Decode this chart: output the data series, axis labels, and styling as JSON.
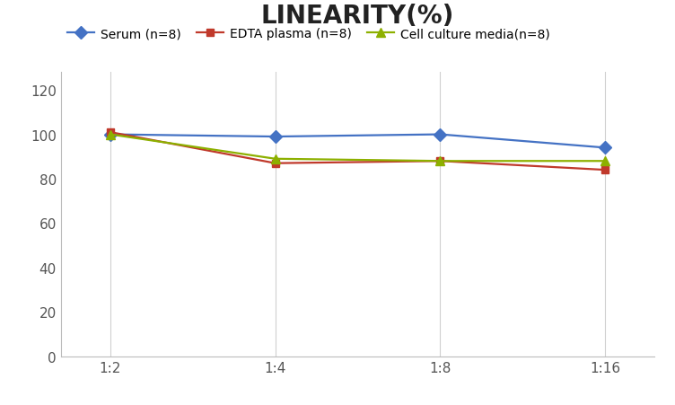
{
  "title": "LINEARITY(%)",
  "x_labels": [
    "1:2",
    "1:4",
    "1:8",
    "1:16"
  ],
  "x_positions": [
    0,
    1,
    2,
    3
  ],
  "series": [
    {
      "label": "Serum (n=8)",
      "values": [
        100,
        99,
        100,
        94
      ],
      "color": "#4472C4",
      "marker": "D",
      "markersize": 7,
      "linewidth": 1.6
    },
    {
      "label": "EDTA plasma (n=8)",
      "values": [
        101,
        87,
        88,
        84
      ],
      "color": "#C0392B",
      "marker": "s",
      "markersize": 6,
      "linewidth": 1.6
    },
    {
      "label": "Cell culture media(n=8)",
      "values": [
        100,
        89,
        88,
        88
      ],
      "color": "#8DB000",
      "marker": "^",
      "markersize": 7,
      "linewidth": 1.6
    }
  ],
  "ylim": [
    0,
    128
  ],
  "yticks": [
    0,
    20,
    40,
    60,
    80,
    100,
    120
  ],
  "grid_color": "#d0d0d0",
  "background_color": "#ffffff",
  "title_fontsize": 20,
  "title_fontweight": "bold",
  "legend_fontsize": 10,
  "tick_fontsize": 11
}
